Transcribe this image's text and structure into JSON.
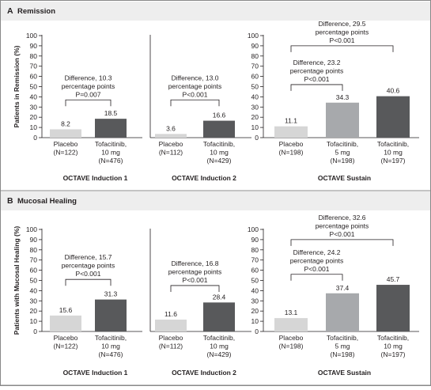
{
  "colors": {
    "placebo": "#d6d6d6",
    "tofa5": "#a7a9ac",
    "tofa10": "#58595b",
    "panel_bg": "#eeeeee",
    "border": "#888888",
    "ink": "#231f20"
  },
  "chart_data": [
    {
      "type": "bar",
      "panel_letter": "A",
      "panel_title": "Remission",
      "title": "OCTAVE Induction 1",
      "ylabel": "Patients in Remission (%)",
      "ylim": [
        0,
        100
      ],
      "yticks": [
        "0",
        "10",
        "20",
        "30",
        "40",
        "50",
        "60",
        "70",
        "80",
        "90",
        "100"
      ],
      "categories": [
        [
          "Placebo",
          "(N=122)"
        ],
        [
          "Tofacitinib,",
          "10 mg",
          "(N=476)"
        ]
      ],
      "values": [
        8.2,
        18.5
      ],
      "value_labels": [
        "8.2",
        "18.5"
      ],
      "fills": [
        "placebo",
        "tofa10"
      ],
      "comparisons": [
        {
          "from": 0,
          "to": 1,
          "level": 37,
          "lines": [
            "Difference, 10.3",
            "percentage points",
            "P=0.007"
          ]
        }
      ]
    },
    {
      "type": "bar",
      "title": "OCTAVE Induction 2",
      "ylim": [
        0,
        100
      ],
      "categories": [
        [
          "Placebo",
          "(N=112)"
        ],
        [
          "Tofacitinib,",
          "10 mg",
          "(N=429)"
        ]
      ],
      "values": [
        3.6,
        16.6
      ],
      "value_labels": [
        "3.6",
        "16.6"
      ],
      "fills": [
        "placebo",
        "tofa10"
      ],
      "comparisons": [
        {
          "from": 0,
          "to": 1,
          "level": 37,
          "lines": [
            "Difference, 13.0",
            "percentage points",
            "P<0.001"
          ]
        }
      ]
    },
    {
      "type": "bar",
      "title": "OCTAVE Sustain",
      "ylim": [
        0,
        100
      ],
      "yticks": [
        "0",
        "10",
        "20",
        "30",
        "40",
        "50",
        "60",
        "70",
        "80",
        "90",
        "100"
      ],
      "categories": [
        [
          "Placebo",
          "(N=198)"
        ],
        [
          "Tofacitinib,",
          "5 mg",
          "(N=198)"
        ],
        [
          "Tofacitinib,",
          "10 mg",
          "(N=197)"
        ]
      ],
      "values": [
        11.1,
        34.3,
        40.6
      ],
      "value_labels": [
        "11.1",
        "34.3",
        "40.6"
      ],
      "fills": [
        "placebo",
        "tofa5",
        "tofa10"
      ],
      "comparisons": [
        {
          "from": 0,
          "to": 1,
          "level": 52,
          "lines": [
            "Difference, 23.2",
            "percentage points",
            "P<0.001"
          ]
        },
        {
          "from": 0,
          "to": 2,
          "level": 90,
          "lines": [
            "Difference, 29.5",
            "percentage points",
            "P<0.001"
          ]
        }
      ]
    },
    {
      "type": "bar",
      "panel_letter": "B",
      "panel_title": "Mucosal Healing",
      "title": "OCTAVE Induction 1",
      "ylabel": "Patients with Mucosal Healing (%)",
      "ylim": [
        0,
        100
      ],
      "yticks": [
        "0",
        "10",
        "20",
        "30",
        "40",
        "50",
        "60",
        "70",
        "80",
        "90",
        "100"
      ],
      "categories": [
        [
          "Placebo",
          "(N=122)"
        ],
        [
          "Tofacitinib,",
          "10 mg",
          "(N=476)"
        ]
      ],
      "values": [
        15.6,
        31.3
      ],
      "value_labels": [
        "15.6",
        "31.3"
      ],
      "fills": [
        "placebo",
        "tofa10"
      ],
      "comparisons": [
        {
          "from": 0,
          "to": 1,
          "level": 51,
          "lines": [
            "Difference, 15.7",
            "percentage points",
            "P<0.001"
          ]
        }
      ]
    },
    {
      "type": "bar",
      "title": "OCTAVE Induction 2",
      "ylim": [
        0,
        100
      ],
      "categories": [
        [
          "Placebo",
          "(N=112)"
        ],
        [
          "Tofacitinib,",
          "10 mg",
          "(N=429)"
        ]
      ],
      "values": [
        11.6,
        28.4
      ],
      "value_labels": [
        "11.6",
        "28.4"
      ],
      "fills": [
        "placebo",
        "tofa10"
      ],
      "comparisons": [
        {
          "from": 0,
          "to": 1,
          "level": 45,
          "lines": [
            "Difference, 16.8",
            "percentage points",
            "P<0.001"
          ]
        }
      ]
    },
    {
      "type": "bar",
      "title": "OCTAVE Sustain",
      "ylim": [
        0,
        100
      ],
      "yticks": [
        "0",
        "10",
        "20",
        "30",
        "40",
        "50",
        "60",
        "70",
        "80",
        "90",
        "100"
      ],
      "categories": [
        [
          "Placebo",
          "(N=198)"
        ],
        [
          "Tofacitinib,",
          "5 mg",
          "(N=198)"
        ],
        [
          "Tofacitinib,",
          "10 mg",
          "(N=197)"
        ]
      ],
      "values": [
        13.1,
        37.4,
        45.7
      ],
      "value_labels": [
        "13.1",
        "37.4",
        "45.7"
      ],
      "fills": [
        "placebo",
        "tofa5",
        "tofa10"
      ],
      "comparisons": [
        {
          "from": 0,
          "to": 1,
          "level": 56,
          "lines": [
            "Difference, 24.2",
            "percentage points",
            "P<0.001"
          ]
        },
        {
          "from": 0,
          "to": 2,
          "level": 90,
          "lines": [
            "Difference, 32.6",
            "percentage points",
            "P<0.001"
          ]
        }
      ]
    }
  ]
}
